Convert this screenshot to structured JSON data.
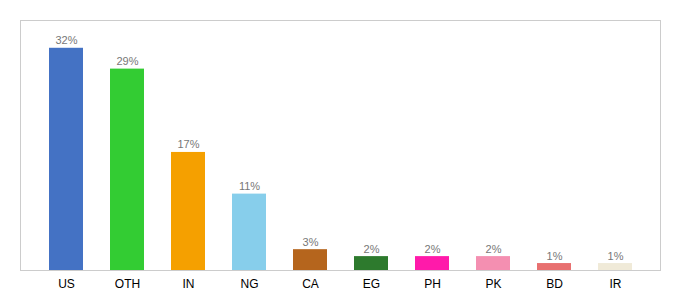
{
  "chart_data": {
    "type": "bar",
    "categories": [
      "US",
      "OTH",
      "IN",
      "NG",
      "CA",
      "EG",
      "PH",
      "PK",
      "BD",
      "IR"
    ],
    "values": [
      32,
      29,
      17,
      11,
      3,
      2,
      2,
      2,
      1,
      1
    ],
    "value_labels": [
      "32%",
      "29%",
      "17%",
      "11%",
      "3%",
      "2%",
      "2%",
      "2%",
      "1%",
      "1%"
    ],
    "colors": [
      "#4472c4",
      "#33cc33",
      "#f5a000",
      "#87ceeb",
      "#b5651d",
      "#2d7a2d",
      "#ff1aaa",
      "#f48fb1",
      "#e87070",
      "#f0ead8"
    ],
    "ylim": [
      0,
      36
    ],
    "data_labels": true,
    "tick_labels": "x",
    "grid": false
  }
}
